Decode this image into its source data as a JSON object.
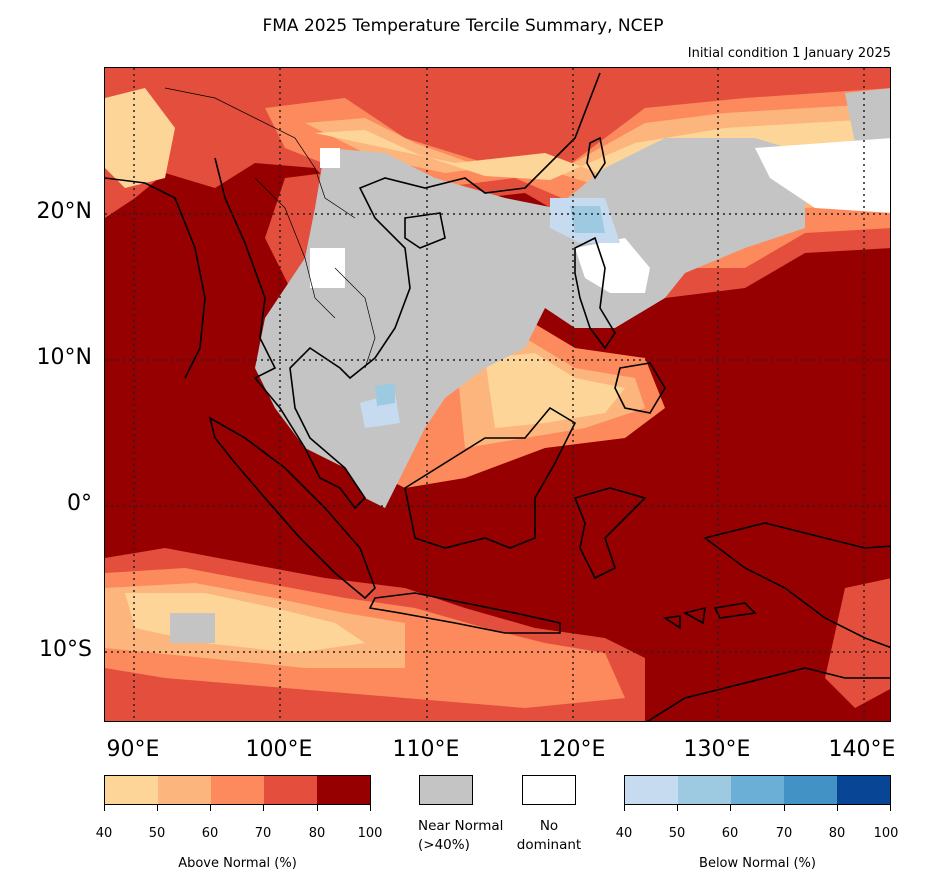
{
  "title": "FMA 2025 Temperature Tercile Summary, NCEP",
  "subtitle": "Initial condition 1 January 2025",
  "map": {
    "latitude_labels": [
      "20°N",
      "10°N",
      "0°",
      "10°S"
    ],
    "longitude_labels": [
      "90°E",
      "100°E",
      "110°E",
      "120°E",
      "130°E",
      "140°E"
    ],
    "colors": {
      "above_80_100": "#960000",
      "above_70_80": "#e34f3c",
      "above_60_70": "#fc8a5c",
      "above_50_60": "#fdb57e",
      "above_40_50": "#fed598",
      "near_normal": "#c4c4c4",
      "no_dominant": "#ffffff",
      "below_40_50": "#c6dbef",
      "below_50_60": "#9ecae1",
      "below_60_70": "#6baed6",
      "below_70_80": "#4292c6",
      "below_80_100": "#084594"
    }
  },
  "legend": {
    "above": {
      "label": "Above Normal (%)",
      "ticks": [
        "40",
        "50",
        "60",
        "70",
        "80",
        "100"
      ],
      "colors": [
        "#fed598",
        "#fdb57e",
        "#fc8a5c",
        "#e34f3c",
        "#960000"
      ]
    },
    "near_normal": {
      "label_line1": "Near Normal",
      "label_line2": "(>40%)",
      "color": "#c4c4c4"
    },
    "no_dominant": {
      "label_line1": "No",
      "label_line2": "dominant",
      "color": "#ffffff"
    },
    "below": {
      "label": "Below Normal (%)",
      "ticks": [
        "40",
        "50",
        "60",
        "70",
        "80",
        "100"
      ],
      "colors": [
        "#c6dbef",
        "#9ecae1",
        "#6baed6",
        "#4292c6",
        "#084594"
      ]
    }
  }
}
